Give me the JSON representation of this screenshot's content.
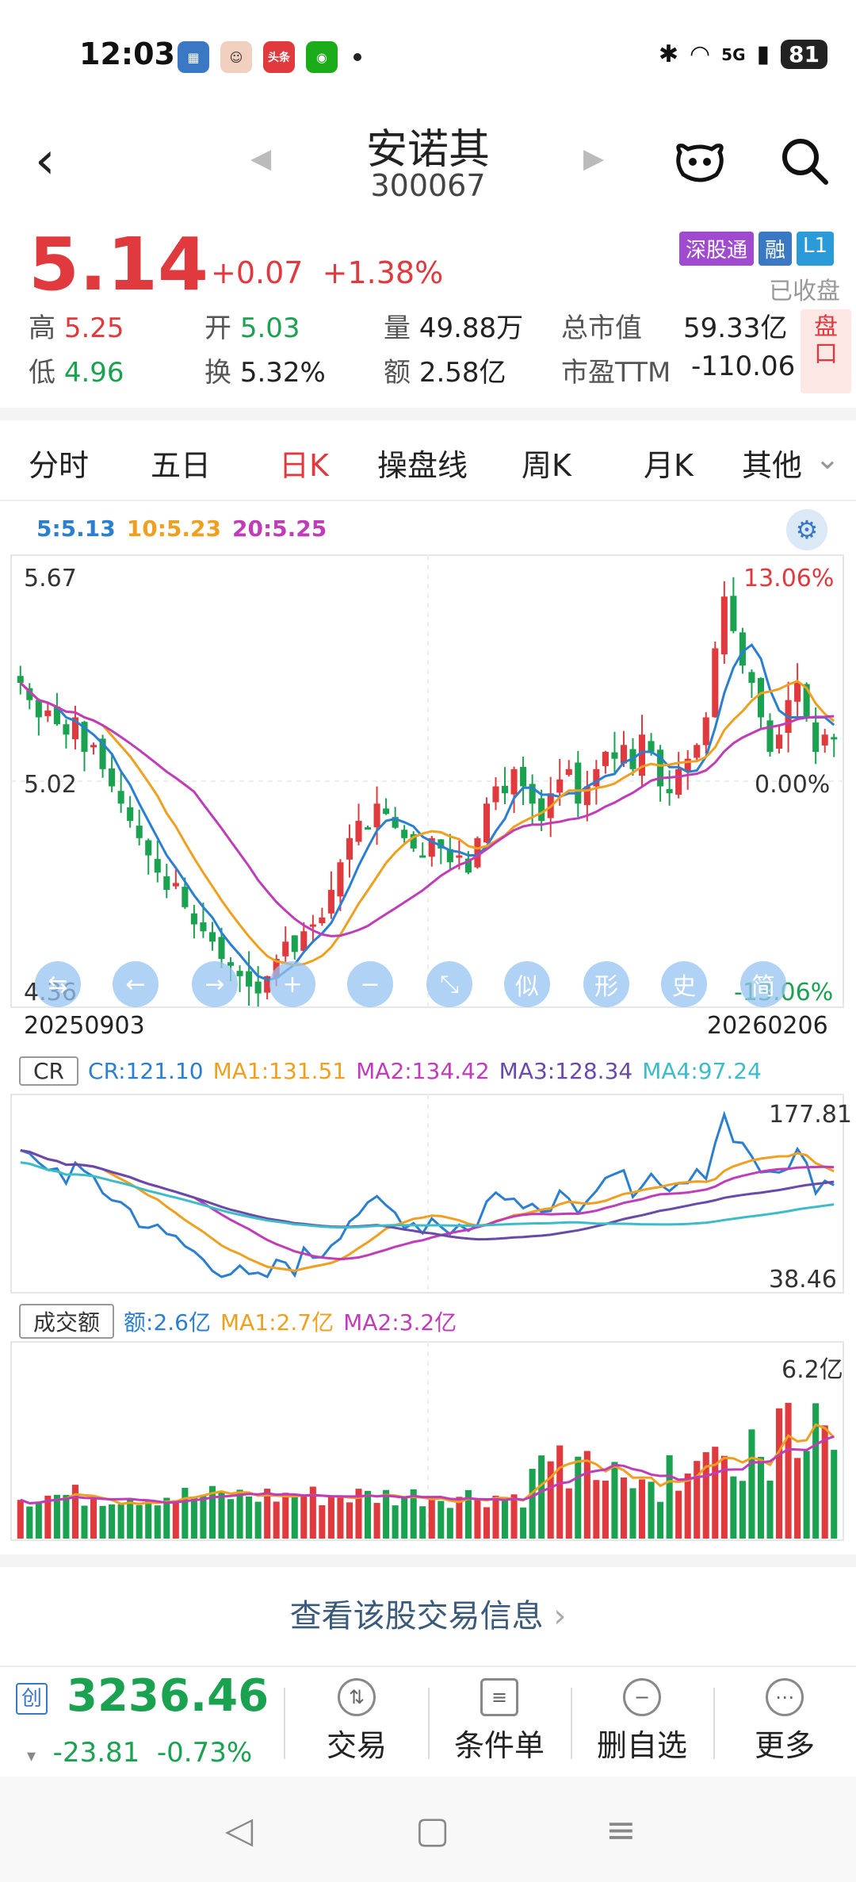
{
  "status": {
    "time": "12:03",
    "network": "5G",
    "battery": "81"
  },
  "header": {
    "name": "安诺其",
    "code": "300067"
  },
  "quote": {
    "price": "5.14",
    "change": "+0.07",
    "change_pct": "+1.38%",
    "badges": [
      "深股通",
      "融",
      "L1"
    ],
    "market_state": "已收盘",
    "high_label": "高",
    "high": "5.25",
    "open_label": "开",
    "open": "5.03",
    "volume_label": "量",
    "volume": "49.88万",
    "mcap_label": "总市值",
    "mcap": "59.33亿",
    "low_label": "低",
    "low": "4.96",
    "turnover_label": "换",
    "turnover": "5.32%",
    "amount_label": "额",
    "amount": "2.58亿",
    "pe_label": "市盈TTM",
    "pe": "-110.06",
    "pankou": "盘口"
  },
  "tabs": [
    "分时",
    "五日",
    "日K",
    "操盘线",
    "周K",
    "月K",
    "其他"
  ],
  "active_tab": "日K",
  "ma_legend": {
    "ma5": "5:5.13",
    "ma10": "10:5.23",
    "ma20": "20:5.25"
  },
  "kline": {
    "y_top": "5.67",
    "y_mid": "5.02",
    "y_bot": "4.36",
    "pct_top": "13.06%",
    "pct_mid": "0.00%",
    "pct_bot": "-13.06%",
    "date_start": "20250903",
    "date_end": "20260206",
    "tools": [
      "⇆",
      "←",
      "→",
      "+",
      "−",
      "⤡",
      "似",
      "形",
      "史",
      "简"
    ]
  },
  "cr": {
    "tag": "CR",
    "cr": "CR:121.10",
    "ma1": "MA1:131.51",
    "ma2": "MA2:134.42",
    "ma3": "MA3:128.34",
    "ma4": "MA4:97.24",
    "y_top": "177.81",
    "y_bot": "38.46"
  },
  "vol": {
    "tag": "成交额",
    "amt": "额:2.6亿",
    "ma1": "MA1:2.7亿",
    "ma2": "MA2:3.2亿",
    "y_top": "6.2亿"
  },
  "trade_info": "查看该股交易信息",
  "index": {
    "tag": "创",
    "value": "3236.46",
    "change": "-23.81",
    "change_pct": "-0.73%"
  },
  "actions": [
    "交易",
    "条件单",
    "删自选",
    "更多"
  ],
  "colors": {
    "up": "#e0393e",
    "down": "#1aa251",
    "ma5": "#2a7fd0",
    "ma10": "#f0a020",
    "ma20": "#c03cb8",
    "ma4": "#3cbcc8",
    "ma3": "#6a4aa8"
  },
  "chart_data": {
    "type": "candlestick",
    "x_start": "20250903",
    "x_end": "20260206",
    "ylim": [
      4.36,
      5.67
    ],
    "closes": [
      5.3,
      5.25,
      5.2,
      5.22,
      5.18,
      5.15,
      5.2,
      5.1,
      5.12,
      5.05,
      5.0,
      4.95,
      4.9,
      4.85,
      4.8,
      4.75,
      4.7,
      4.72,
      4.65,
      4.6,
      4.58,
      4.55,
      4.5,
      4.48,
      4.45,
      4.42,
      4.4,
      4.45,
      4.5,
      4.55,
      4.52,
      4.58,
      4.6,
      4.62,
      4.7,
      4.78,
      4.85,
      4.9,
      4.88,
      4.95,
      4.92,
      4.88,
      4.85,
      4.82,
      4.8,
      4.85,
      4.82,
      4.78,
      4.8,
      4.75,
      4.85,
      4.95,
      5.0,
      4.98,
      5.05,
      5.0,
      4.95,
      4.9,
      4.98,
      5.02,
      5.05,
      4.95,
      5.0,
      5.05,
      5.1,
      5.08,
      5.12,
      5.05,
      5.15,
      5.1,
      5.0,
      4.98,
      5.05,
      5.08,
      5.12,
      5.2,
      5.4,
      5.55,
      5.45,
      5.35,
      5.3,
      5.2,
      5.1,
      5.15,
      5.25,
      5.3,
      5.2,
      5.1,
      5.15,
      5.14
    ]
  }
}
